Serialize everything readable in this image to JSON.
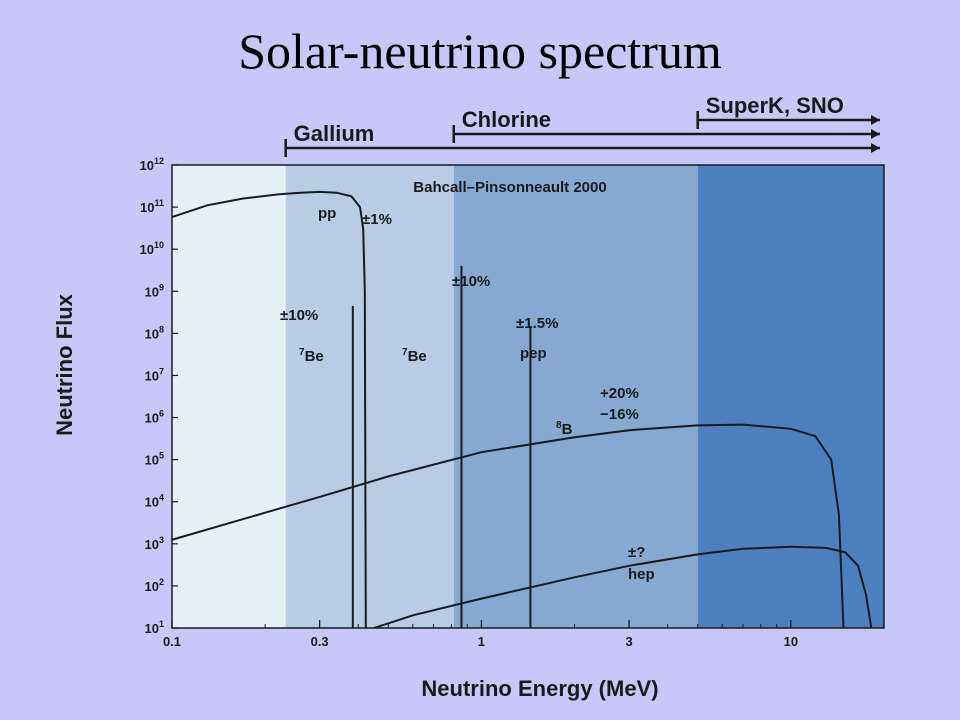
{
  "page": {
    "title": "Solar-neutrino spectrum"
  },
  "colors": {
    "background": "#c8c8f8",
    "plot_bg": "#f4f7fb",
    "region_below_gallium": "#e6eef7",
    "region_gallium": "#b8cde5",
    "region_chlorine": "#86a9d3",
    "region_superk": "#4b7fbf",
    "curve": "#1a1a1a"
  },
  "chart_data": {
    "type": "line",
    "title": "Bahcall–Pinsonneault 2000",
    "xlabel": "Neutrino Energy (MeV)",
    "ylabel": "Neutrino Flux",
    "xscale": "log",
    "yscale": "log",
    "xlim": [
      0.1,
      20
    ],
    "ylim": [
      10,
      1000000000000.0
    ],
    "x_ticks": [
      {
        "value": 0.1,
        "label": "0.1"
      },
      {
        "value": 0.3,
        "label": "0.3"
      },
      {
        "value": 1,
        "label": "1"
      },
      {
        "value": 3,
        "label": "3"
      },
      {
        "value": 10,
        "label": "10"
      }
    ],
    "y_ticks": [
      {
        "exp": 1,
        "base": "10",
        "sup": "1"
      },
      {
        "exp": 2,
        "base": "10",
        "sup": "2"
      },
      {
        "exp": 3,
        "base": "10",
        "sup": "3"
      },
      {
        "exp": 4,
        "base": "10",
        "sup": "4"
      },
      {
        "exp": 5,
        "base": "10",
        "sup": "5"
      },
      {
        "exp": 6,
        "base": "10",
        "sup": "6"
      },
      {
        "exp": 7,
        "base": "10",
        "sup": "7"
      },
      {
        "exp": 8,
        "base": "10",
        "sup": "8"
      },
      {
        "exp": 9,
        "base": "10",
        "sup": "9"
      },
      {
        "exp": 10,
        "base": "10",
        "sup": "10"
      },
      {
        "exp": 11,
        "base": "10",
        "sup": "11"
      },
      {
        "exp": 12,
        "base": "10",
        "sup": "12"
      }
    ],
    "regions": [
      {
        "name": "below-gallium",
        "x_from": 0.1,
        "x_to": 0.233
      },
      {
        "name": "gallium",
        "x_from": 0.233,
        "x_to": 0.814
      },
      {
        "name": "chlorine",
        "x_from": 0.814,
        "x_to": 5
      },
      {
        "name": "superk",
        "x_from": 5,
        "x_to": 20
      }
    ],
    "thresholds": [
      {
        "label": "Gallium",
        "x": 0.233
      },
      {
        "label": "Chlorine",
        "x": 0.814
      },
      {
        "label": "SuperK, SNO",
        "x": 5
      }
    ],
    "continuous": [
      {
        "name": "pp",
        "label": "pp",
        "uncertainty": "±1%",
        "points": [
          [
            0.1,
            58000000000.0
          ],
          [
            0.13,
            110000000000.0
          ],
          [
            0.17,
            160000000000.0
          ],
          [
            0.22,
            200000000000.0
          ],
          [
            0.26,
            220000000000.0
          ],
          [
            0.3,
            230000000000.0
          ],
          [
            0.34,
            220000000000.0
          ],
          [
            0.38,
            180000000000.0
          ],
          [
            0.405,
            100000000000.0
          ],
          [
            0.415,
            30000000000.0
          ],
          [
            0.42,
            1000000000.0
          ],
          [
            0.423,
            10
          ]
        ]
      },
      {
        "name": "8B",
        "label": "8B",
        "uncertainty_upper": "+20%",
        "uncertainty_lower": "−16%",
        "points": [
          [
            0.1,
            1250.0
          ],
          [
            0.2,
            5500.0
          ],
          [
            0.3,
            13000.0
          ],
          [
            0.5,
            40000.0
          ],
          [
            1,
            150000.0
          ],
          [
            2,
            340000.0
          ],
          [
            3,
            500000.0
          ],
          [
            5,
            650000.0
          ],
          [
            7,
            680000.0
          ],
          [
            10,
            540000.0
          ],
          [
            12,
            360000.0
          ],
          [
            13.5,
            100000.0
          ],
          [
            14.3,
            5000.0
          ],
          [
            14.8,
            10
          ]
        ]
      },
      {
        "name": "hep",
        "label": "hep",
        "uncertainty": "±?",
        "points": [
          [
            0.45,
            10
          ],
          [
            0.6,
            20
          ],
          [
            1,
            50
          ],
          [
            2,
            160
          ],
          [
            3,
            300
          ],
          [
            5,
            560
          ],
          [
            7,
            760
          ],
          [
            10,
            850
          ],
          [
            13,
            800
          ],
          [
            15,
            630
          ],
          [
            16.5,
            300
          ],
          [
            17.5,
            60
          ],
          [
            18.2,
            10
          ]
        ]
      }
    ],
    "lines": [
      {
        "name": "7Be-0.38",
        "label": "7Be",
        "uncertainty": "±10%",
        "x": 0.384,
        "flux": 450000000.0
      },
      {
        "name": "7Be-0.86",
        "label": "7Be",
        "uncertainty": "±10%",
        "x": 0.862,
        "flux": 4000000000.0
      },
      {
        "name": "pep",
        "label": "pep",
        "uncertainty": "±1.5%",
        "x": 1.44,
        "flux": 150000000.0
      }
    ]
  }
}
